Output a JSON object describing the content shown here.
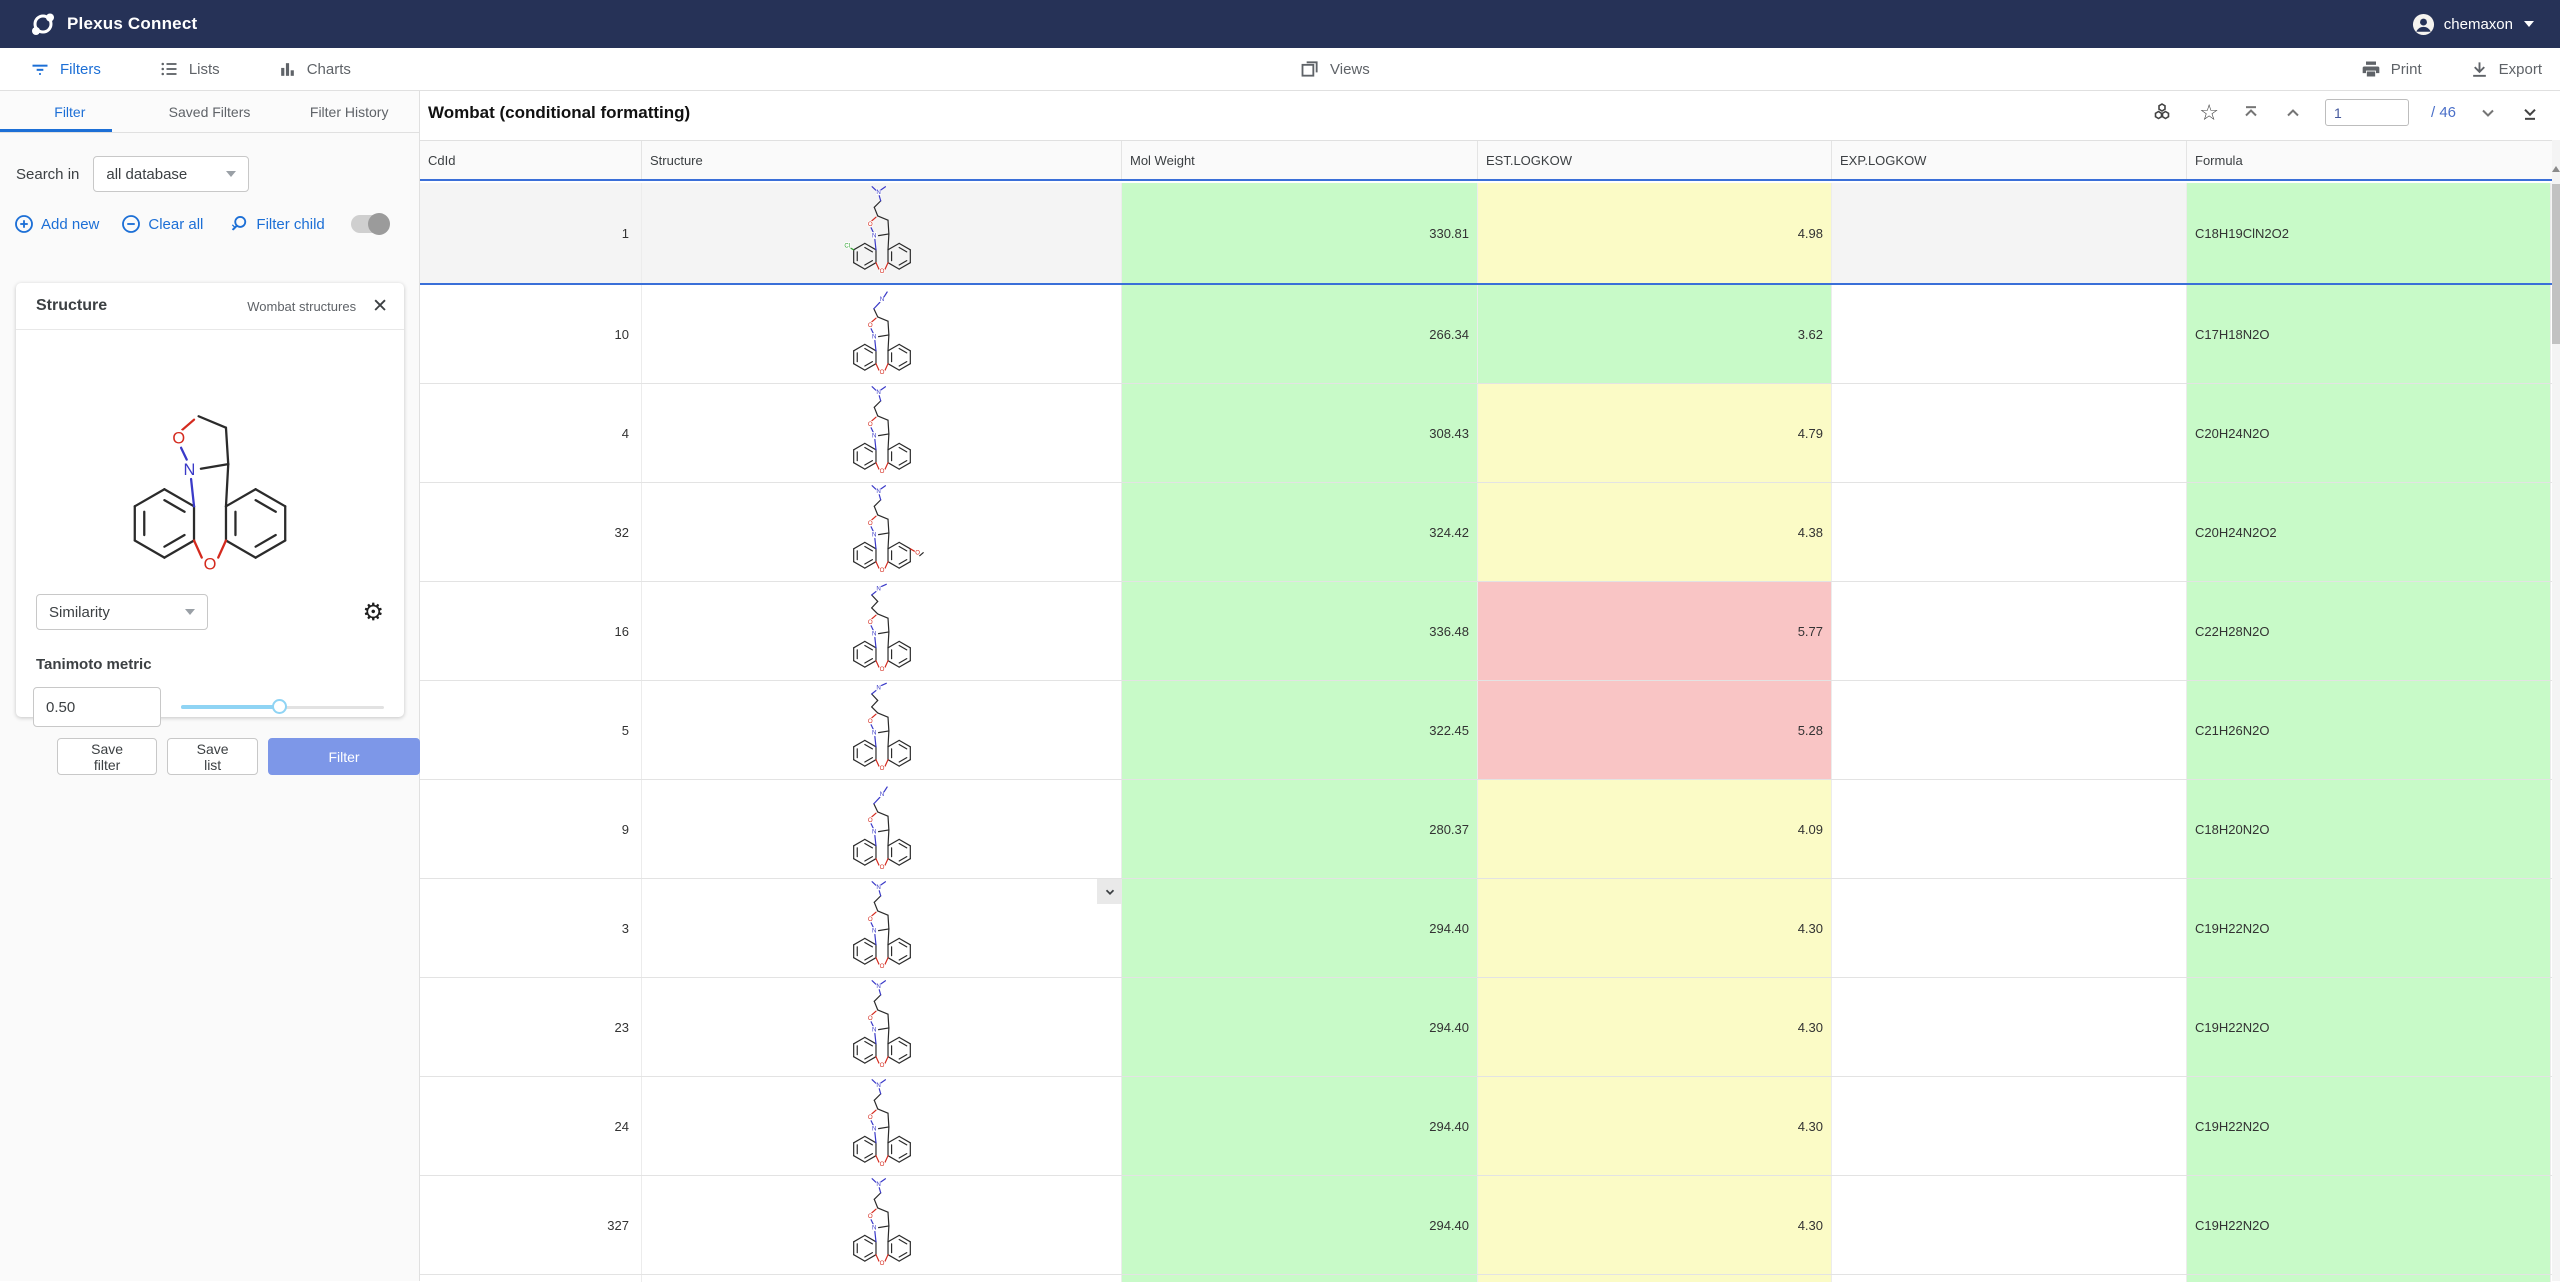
{
  "topbar": {
    "app_title": "Plexus Connect",
    "user": "chemaxon"
  },
  "toolbar": {
    "filters": "Filters",
    "lists": "Lists",
    "charts": "Charts",
    "views": "Views",
    "print": "Print",
    "export": "Export"
  },
  "sidebar": {
    "tabs": [
      "Filter",
      "Saved Filters",
      "Filter History"
    ],
    "active_tab": "Filter",
    "search_in_label": "Search in",
    "search_in_value": "all database",
    "actions": {
      "add_new": "Add new",
      "clear_all": "Clear all",
      "filter_child": "Filter child",
      "filter_child_toggle": "off"
    },
    "structure_card": {
      "title": "Structure",
      "subtitle": "Wombat structures",
      "method_value": "Similarity",
      "metric_label": "Tanimoto metric",
      "metric_value": "0.50",
      "slider_percent": 49
    },
    "buttons": {
      "save_filter": "Save filter",
      "save_list": "Save list",
      "filter": "Filter"
    }
  },
  "grid": {
    "title": "Wombat (conditional formatting)",
    "page": {
      "current": "1",
      "separator": "/",
      "total": "46"
    },
    "columns": [
      "CdId",
      "Structure",
      "Mol Weight",
      "EST.LOGKOW",
      "EXP.LOGKOW",
      "Formula"
    ],
    "format_colors": {
      "green": "#c8fac8",
      "yellow": "#fbfbc6",
      "red": "#f9c5c5"
    },
    "rows": [
      {
        "cdid": "1",
        "mol_weight": "330.81",
        "est_logkow": "4.98",
        "est_level": "yellow",
        "exp_logkow": "",
        "formula": "C18H19ClN2O2",
        "selected": true,
        "molecule": {
          "chain": "medium",
          "cl": true
        }
      },
      {
        "cdid": "10",
        "mol_weight": "266.34",
        "est_logkow": "3.62",
        "est_level": "green",
        "exp_logkow": "",
        "formula": "C17H18N2O",
        "molecule": {
          "chain": "stub"
        }
      },
      {
        "cdid": "4",
        "mol_weight": "308.43",
        "est_logkow": "4.79",
        "est_level": "yellow",
        "exp_logkow": "",
        "formula": "C20H24N2O",
        "molecule": {
          "chain": "medium"
        }
      },
      {
        "cdid": "32",
        "mol_weight": "324.42",
        "est_logkow": "4.38",
        "est_level": "yellow",
        "exp_logkow": "",
        "formula": "C20H24N2O2",
        "molecule": {
          "chain": "medium",
          "ome": true
        }
      },
      {
        "cdid": "16",
        "mol_weight": "336.48",
        "est_logkow": "5.77",
        "est_level": "red",
        "exp_logkow": "",
        "formula": "C22H28N2O",
        "molecule": {
          "chain": "long"
        }
      },
      {
        "cdid": "5",
        "mol_weight": "322.45",
        "est_logkow": "5.28",
        "est_level": "red",
        "exp_logkow": "",
        "formula": "C21H26N2O",
        "molecule": {
          "chain": "long"
        }
      },
      {
        "cdid": "9",
        "mol_weight": "280.37",
        "est_logkow": "4.09",
        "est_level": "yellow",
        "exp_logkow": "",
        "formula": "C18H20N2O",
        "molecule": {
          "chain": "stub"
        }
      },
      {
        "cdid": "3",
        "mol_weight": "294.40",
        "est_logkow": "4.30",
        "est_level": "yellow",
        "exp_logkow": "",
        "formula": "C19H22N2O",
        "molecule": {
          "chain": "medium"
        },
        "has_expand": true
      },
      {
        "cdid": "23",
        "mol_weight": "294.40",
        "est_logkow": "4.30",
        "est_level": "yellow",
        "exp_logkow": "",
        "formula": "C19H22N2O",
        "molecule": {
          "chain": "medium"
        }
      },
      {
        "cdid": "24",
        "mol_weight": "294.40",
        "est_logkow": "4.30",
        "est_level": "yellow",
        "exp_logkow": "",
        "formula": "C19H22N2O",
        "molecule": {
          "chain": "medium"
        }
      },
      {
        "cdid": "327",
        "mol_weight": "294.40",
        "est_logkow": "4.30",
        "est_level": "yellow",
        "exp_logkow": "",
        "formula": "C19H22N2O",
        "molecule": {
          "chain": "medium"
        }
      },
      {
        "cdid": "",
        "mol_weight": "",
        "est_logkow": "",
        "est_level": "yellow",
        "exp_logkow": "",
        "formula": "",
        "partial": true
      }
    ]
  }
}
